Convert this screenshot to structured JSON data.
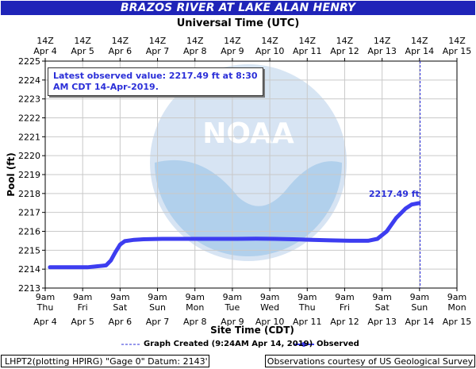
{
  "title": "BRAZOS RIVER AT LAKE ALAN HENRY",
  "top_axis_title": "Universal Time (UTC)",
  "latest_observed": "Latest observed value: 2217.49 ft at 8:30 AM CDT 14-Apr-2019.",
  "legend": {
    "graph_created": "Graph Created (9:24AM Apr 14, 2019)",
    "observed": "Observed"
  },
  "footer": {
    "left": "LHPT2(plotting HPIRG) \"Gage 0\" Datum: 2143'",
    "right": "Observations courtesy of US Geological Survey"
  },
  "colors": {
    "title_bg": "#1f24b8",
    "series": "#3d3df0",
    "grid": "#c9c9c9",
    "logo_light": "#d3e2f2",
    "logo_dark": "#b7c6d6"
  },
  "chart_data": {
    "type": "line",
    "title": "BRAZOS RIVER AT LAKE ALAN HENRY",
    "xlabel": "Site Time (CDT)",
    "ylabel": "Pool (ft)",
    "x2label": "Universal Time (UTC)",
    "ylim": [
      2213,
      2225
    ],
    "yticks": [
      2213,
      2214,
      2215,
      2216,
      2217,
      2218,
      2219,
      2220,
      2221,
      2222,
      2223,
      2224,
      2225
    ],
    "xlim": [
      "Apr 4 09:00",
      "Apr 15 09:00"
    ],
    "bottom_ticks": [
      {
        "time": "9am",
        "day": "Thu",
        "date": "Apr 4"
      },
      {
        "time": "9am",
        "day": "Fri",
        "date": "Apr 5"
      },
      {
        "time": "9am",
        "day": "Sat",
        "date": "Apr 6"
      },
      {
        "time": "9am",
        "day": "Sun",
        "date": "Apr 7"
      },
      {
        "time": "9am",
        "day": "Mon",
        "date": "Apr 8"
      },
      {
        "time": "9am",
        "day": "Tue",
        "date": "Apr 9"
      },
      {
        "time": "9am",
        "day": "Wed",
        "date": "Apr 10"
      },
      {
        "time": "9am",
        "day": "Thu",
        "date": "Apr 11"
      },
      {
        "time": "9am",
        "day": "Fri",
        "date": "Apr 12"
      },
      {
        "time": "9am",
        "day": "Sat",
        "date": "Apr 13"
      },
      {
        "time": "9am",
        "day": "Sun",
        "date": "Apr 14"
      },
      {
        "time": "9am",
        "day": "Mon",
        "date": "Apr 15"
      }
    ],
    "top_ticks": [
      {
        "time": "14Z",
        "date": "Apr 4"
      },
      {
        "time": "14Z",
        "date": "Apr 5"
      },
      {
        "time": "14Z",
        "date": "Apr 6"
      },
      {
        "time": "14Z",
        "date": "Apr 7"
      },
      {
        "time": "14Z",
        "date": "Apr 8"
      },
      {
        "time": "14Z",
        "date": "Apr 9"
      },
      {
        "time": "14Z",
        "date": "Apr 10"
      },
      {
        "time": "14Z",
        "date": "Apr 11"
      },
      {
        "time": "14Z",
        "date": "Apr 12"
      },
      {
        "time": "14Z",
        "date": "Apr 13"
      },
      {
        "time": "14Z",
        "date": "Apr 14"
      },
      {
        "time": "14Z",
        "date": "Apr 15"
      }
    ],
    "graph_created_x": "Apr 14 09:24",
    "series": [
      {
        "name": "Observed",
        "x": [
          "Apr 4 12:00",
          "Apr 4 18:00",
          "Apr 5 00:00",
          "Apr 5 12:00",
          "Apr 5 18:00",
          "Apr 6 00:00",
          "Apr 6 03:00",
          "Apr 6 06:00",
          "Apr 6 09:00",
          "Apr 6 12:00",
          "Apr 6 18:00",
          "Apr 7 00:00",
          "Apr 7 12:00",
          "Apr 8 00:00",
          "Apr 8 12:00",
          "Apr 9 00:00",
          "Apr 9 12:00",
          "Apr 10 00:00",
          "Apr 10 12:00",
          "Apr 11 00:00",
          "Apr 11 12:00",
          "Apr 12 00:00",
          "Apr 12 12:00",
          "Apr 13 00:00",
          "Apr 13 06:00",
          "Apr 13 12:00",
          "Apr 13 18:00",
          "Apr 14 00:00",
          "Apr 14 04:00",
          "Apr 14 08:30"
        ],
        "y": [
          2214.1,
          2214.1,
          2214.1,
          2214.1,
          2214.15,
          2214.2,
          2214.45,
          2214.9,
          2215.3,
          2215.48,
          2215.55,
          2215.58,
          2215.6,
          2215.6,
          2215.6,
          2215.6,
          2215.6,
          2215.61,
          2215.6,
          2215.58,
          2215.55,
          2215.52,
          2215.5,
          2215.5,
          2215.6,
          2216.0,
          2216.7,
          2217.2,
          2217.42,
          2217.49
        ]
      }
    ],
    "annotations": [
      {
        "text": "2217.49 ft",
        "x": "Apr 14 08:30",
        "y": 2217.49
      }
    ],
    "grid": true,
    "legend_position": "bottom"
  }
}
